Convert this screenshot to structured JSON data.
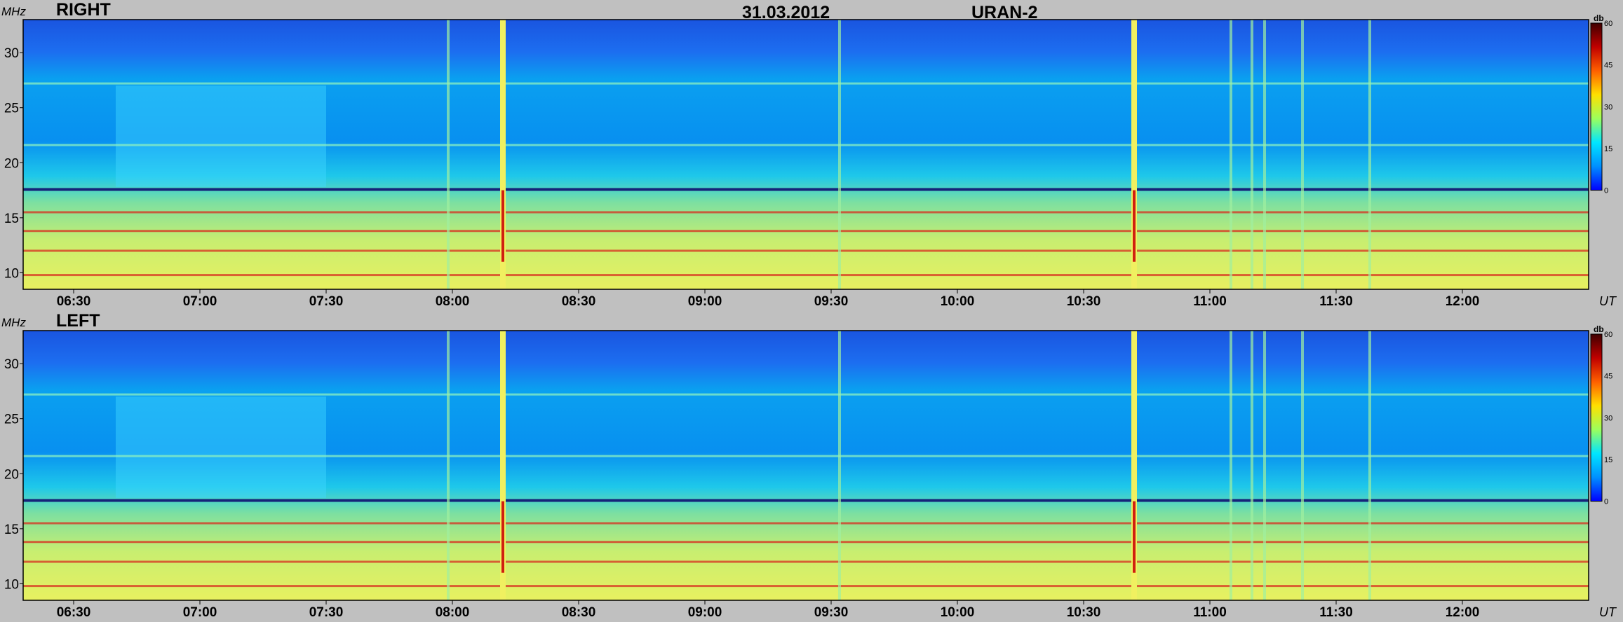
{
  "header": {
    "date": "31.03.2012",
    "instrument": "URAN-2"
  },
  "chart_data": [
    {
      "type": "heatmap",
      "title": "RIGHT",
      "ylabel": "MHz",
      "xlabel": "UT",
      "ylim": [
        8.5,
        33
      ],
      "yticks": [
        10,
        15,
        20,
        25,
        30
      ],
      "xlim": [
        "06:18",
        "12:30"
      ],
      "xticks": [
        "06:30",
        "07:00",
        "07:30",
        "08:00",
        "08:30",
        "09:00",
        "09:30",
        "10:00",
        "10:30",
        "11:00",
        "11:30",
        "12:00"
      ],
      "colorbar": {
        "label": "db",
        "range": [
          0,
          60
        ],
        "ticks": [
          0,
          15,
          30,
          45,
          60
        ],
        "colors": [
          "#0000ff",
          "#0090ff",
          "#00e6ff",
          "#9cff5c",
          "#ffe000",
          "#ff6000",
          "#c00000",
          "#400000"
        ]
      },
      "features": {
        "strong_bursts_ut": [
          "08:12",
          "10:42"
        ],
        "weak_bursts_ut": [
          "07:59",
          "09:32",
          "11:05",
          "11:10",
          "11:13",
          "11:22",
          "11:38"
        ],
        "interference_bands_mhz": [
          17.6,
          15.5,
          13.8,
          12.0,
          9.8,
          21.6,
          27.2
        ]
      }
    },
    {
      "type": "heatmap",
      "title": "LEFT",
      "ylabel": "MHz",
      "xlabel": "UT",
      "ylim": [
        8.5,
        33
      ],
      "yticks": [
        10,
        15,
        20,
        25,
        30
      ],
      "xlim": [
        "06:18",
        "12:30"
      ],
      "xticks": [
        "06:30",
        "07:00",
        "07:30",
        "08:00",
        "08:30",
        "09:00",
        "09:30",
        "10:00",
        "10:30",
        "11:00",
        "11:30",
        "12:00"
      ],
      "colorbar": {
        "label": "db",
        "range": [
          0,
          60
        ],
        "ticks": [
          0,
          15,
          30,
          45,
          60
        ],
        "colors": [
          "#0000ff",
          "#0090ff",
          "#00e6ff",
          "#9cff5c",
          "#ffe000",
          "#ff6000",
          "#c00000",
          "#400000"
        ]
      },
      "features": {
        "strong_bursts_ut": [
          "08:12",
          "10:42"
        ],
        "weak_bursts_ut": [
          "07:59",
          "09:32",
          "11:05",
          "11:10",
          "11:13",
          "11:22",
          "11:38"
        ],
        "interference_bands_mhz": [
          17.6,
          15.5,
          13.8,
          12.0,
          9.8,
          21.6,
          27.2
        ]
      }
    }
  ]
}
